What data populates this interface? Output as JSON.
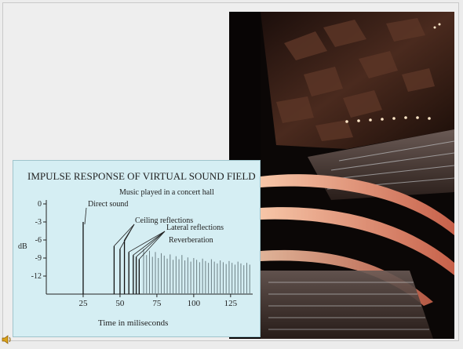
{
  "slide": {
    "background": "#eeeeee",
    "speaker_icon": "speaker-icon"
  },
  "photo": {
    "subject": "concert-hall-interior-icon"
  },
  "chart_data": {
    "type": "bar",
    "title": "IMPULSE RESPONSE OF VIRTUAL SOUND FIELD",
    "subtitle": "Music played in a concert hall",
    "xlabel": "Time in miliseconds",
    "ylabel": "dB",
    "xlim": [
      0,
      140
    ],
    "ylim": [
      -15,
      0
    ],
    "xticks": [
      25,
      50,
      75,
      100,
      125
    ],
    "yticks": [
      0,
      -3,
      -6,
      -9,
      -12
    ],
    "ytick_labels": [
      "0",
      "-3",
      "-6",
      "-9",
      "-12"
    ],
    "annotations": [
      "Direct sound",
      "Ceiling reflections",
      "Lateral reflections",
      "Reverberation"
    ],
    "series": [
      {
        "name": "Direct sound",
        "x": [
          25
        ],
        "y": [
          -3
        ]
      },
      {
        "name": "Ceiling reflections",
        "x": [
          46,
          50,
          53
        ],
        "y": [
          -7,
          -7.5,
          -6
        ]
      },
      {
        "name": "Lateral reflections",
        "x": [
          56,
          59,
          61,
          63
        ],
        "y": [
          -8,
          -8.5,
          -8.8,
          -9.2
        ]
      },
      {
        "name": "Reverberation",
        "x": [
          66,
          68,
          70,
          72,
          74,
          76,
          78,
          80,
          82,
          84,
          86,
          88,
          90,
          92,
          94,
          96,
          98,
          100,
          102,
          104,
          106,
          108,
          110,
          112,
          114,
          116,
          118,
          120,
          122,
          124,
          126,
          128,
          130,
          132,
          134,
          136,
          138
        ],
        "y": [
          -7.5,
          -8.5,
          -7.8,
          -8.8,
          -8,
          -9,
          -8.2,
          -8.6,
          -9.1,
          -8.4,
          -9.3,
          -8.7,
          -9.2,
          -8.5,
          -9.4,
          -8.9,
          -9.6,
          -9,
          -9.3,
          -9.7,
          -9.1,
          -9.5,
          -9.8,
          -9.2,
          -9.6,
          -9.9,
          -9.4,
          -9.7,
          -10,
          -9.5,
          -9.8,
          -10.1,
          -9.6,
          -9.9,
          -10.2,
          -9.8,
          -10.1
        ]
      }
    ]
  }
}
